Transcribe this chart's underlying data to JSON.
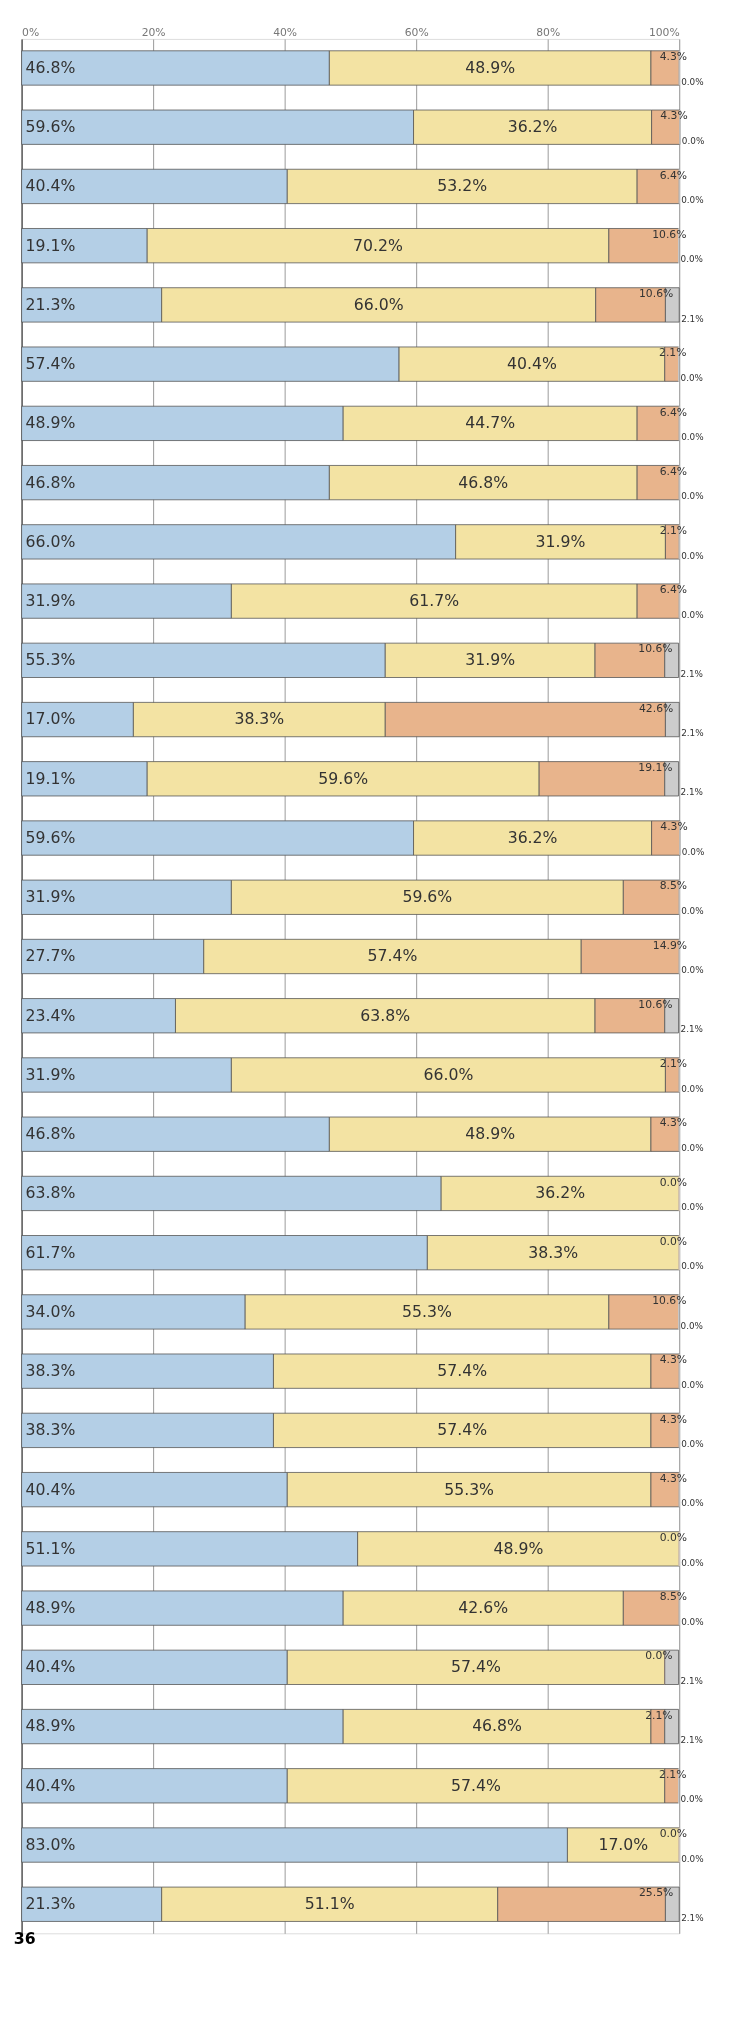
{
  "chart_data": {
    "type": "bar",
    "orientation": "horizontal",
    "stacked": true,
    "categories": [
      null,
      null,
      null,
      null,
      null,
      null,
      null,
      null,
      null,
      null,
      null,
      null,
      null,
      null,
      null,
      null,
      null,
      null,
      null,
      null,
      null,
      null,
      null,
      null,
      null,
      null,
      null,
      null,
      null,
      null,
      null,
      null
    ],
    "xlim": [
      0,
      100
    ],
    "xticks": [
      {
        "value": 0,
        "label": "0%"
      },
      {
        "value": 20,
        "label": "20%"
      },
      {
        "value": 40,
        "label": "40%"
      },
      {
        "value": 60,
        "label": "60%"
      },
      {
        "value": 80,
        "label": "80%"
      },
      {
        "value": 100,
        "label": "100%"
      }
    ],
    "grid": "x",
    "legend": false,
    "tick_labels": "x",
    "series": [
      {
        "color": "#b4cfe6",
        "values": [
          46.8,
          59.6,
          40.4,
          19.1,
          21.3,
          57.4,
          48.9,
          46.8,
          66.0,
          31.9,
          55.3,
          17.0,
          19.1,
          59.6,
          31.9,
          27.7,
          23.4,
          31.9,
          46.8,
          63.8,
          61.7,
          34.0,
          38.3,
          38.3,
          40.4,
          51.1,
          48.9,
          40.4,
          48.9,
          40.4,
          83.0,
          21.3
        ],
        "value_labels": [
          "46.8%",
          "59.6%",
          "40.4%",
          "19.1%",
          "21.3%",
          "57.4%",
          "48.9%",
          "46.8%",
          "66.0%",
          "31.9%",
          "55.3%",
          "17.0%",
          "19.1%",
          "59.6%",
          "31.9%",
          "27.7%",
          "23.4%",
          "31.9%",
          "46.8%",
          "63.8%",
          "61.7%",
          "34.0%",
          "38.3%",
          "38.3%",
          "40.4%",
          "51.1%",
          "48.9%",
          "40.4%",
          "48.9%",
          "40.4%",
          "83.0%",
          "21.3%"
        ]
      },
      {
        "color": "#f3e3a3",
        "values": [
          48.9,
          36.2,
          53.2,
          70.2,
          66.0,
          40.4,
          44.7,
          46.8,
          31.9,
          61.7,
          31.9,
          38.3,
          59.6,
          36.2,
          59.6,
          57.4,
          63.8,
          66.0,
          48.9,
          36.2,
          38.3,
          55.3,
          57.4,
          57.4,
          55.3,
          48.9,
          42.6,
          57.4,
          46.8,
          57.4,
          17.0,
          51.1
        ],
        "value_labels": [
          "48.9%",
          "36.2%",
          "53.2%",
          "70.2%",
          "66.0%",
          "40.4%",
          "44.7%",
          "46.8%",
          "31.9%",
          "61.7%",
          "31.9%",
          "38.3%",
          "59.6%",
          "36.2%",
          "59.6%",
          "57.4%",
          "63.8%",
          "66.0%",
          "48.9%",
          "36.2%",
          "38.3%",
          "55.3%",
          "57.4%",
          "57.4%",
          "55.3%",
          "48.9%",
          "42.6%",
          "57.4%",
          "46.8%",
          "57.4%",
          "17.0%",
          "51.1%"
        ]
      },
      {
        "color": "#e8b48c",
        "values": [
          4.3,
          4.3,
          6.4,
          10.6,
          10.6,
          2.1,
          6.4,
          6.4,
          2.1,
          6.4,
          10.6,
          42.6,
          19.1,
          4.3,
          8.5,
          14.9,
          10.6,
          2.1,
          4.3,
          0.0,
          0.0,
          10.6,
          4.3,
          4.3,
          4.3,
          0.0,
          8.5,
          0.0,
          2.1,
          2.1,
          0.0,
          25.5
        ],
        "value_labels": [
          "4.3%",
          "4.3%",
          "6.4%",
          "10.6%",
          "10.6%",
          "2.1%",
          "6.4%",
          "6.4%",
          "2.1%",
          "6.4%",
          "10.6%",
          "42.6%",
          "19.1%",
          "4.3%",
          "8.5%",
          "14.9%",
          "10.6%",
          "2.1%",
          "4.3%",
          "0.0%",
          "0.0%",
          "10.6%",
          "4.3%",
          "4.3%",
          "4.3%",
          "0.0%",
          "8.5%",
          "0.0%",
          "2.1%",
          "2.1%",
          "0.0%",
          "25.5%"
        ]
      },
      {
        "color": "#cccccc",
        "values": [
          0.0,
          0.0,
          0.0,
          0.0,
          2.1,
          0.0,
          0.0,
          0.0,
          0.0,
          0.0,
          2.1,
          2.1,
          2.1,
          0.0,
          0.0,
          0.0,
          2.1,
          0.0,
          0.0,
          0.0,
          0.0,
          0.0,
          0.0,
          0.0,
          0.0,
          0.0,
          0.0,
          2.1,
          2.1,
          0.0,
          0.0,
          2.1
        ],
        "value_labels": [
          "0.0%",
          "0.0%",
          "0.0%",
          "0.0%",
          "2.1%",
          "0.0%",
          "0.0%",
          "0.0%",
          "0.0%",
          "0.0%",
          "2.1%",
          "2.1%",
          "2.1%",
          "0.0%",
          "0.0%",
          "0.0%",
          "2.1%",
          "0.0%",
          "0.0%",
          "0.0%",
          "0.0%",
          "0.0%",
          "0.0%",
          "0.0%",
          "0.0%",
          "0.0%",
          "0.0%",
          "2.1%",
          "2.1%",
          "0.0%",
          "0.0%",
          "2.1%"
        ]
      }
    ],
    "annotations": [
      "36"
    ]
  }
}
